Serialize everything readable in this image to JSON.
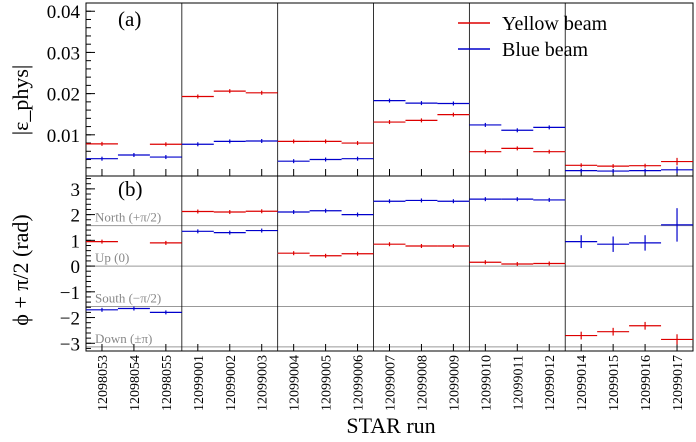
{
  "chart_data": [
    {
      "type": "scatter",
      "panel_label": "(a)",
      "ylabel": "|ε_phys|",
      "ylim": [
        0,
        0.042
      ],
      "yticks": [
        "0.01",
        "0.02",
        "0.03",
        "0.04"
      ],
      "ytick_values": [
        0.01,
        0.02,
        0.03,
        0.04
      ],
      "legend": {
        "position": "top-right",
        "entries": [
          "Yellow beam",
          "Blue beam"
        ]
      },
      "series": [
        {
          "name": "Yellow beam",
          "color": "#dd0000",
          "values": [
            0.0078,
            null,
            0.0077,
            0.0193,
            0.0206,
            0.0202,
            0.0084,
            0.0084,
            0.008,
            0.0131,
            0.0135,
            0.0149,
            0.0059,
            0.0067,
            0.0059,
            0.0026,
            0.0024,
            0.0025,
            0.0035
          ],
          "errors": [
            0.0003,
            null,
            0.0003,
            0.0003,
            0.0003,
            0.0003,
            0.0003,
            0.0003,
            0.0003,
            0.0003,
            0.0003,
            0.0003,
            0.0003,
            0.0003,
            0.0003,
            0.0003,
            0.0003,
            0.0004,
            0.0009
          ]
        },
        {
          "name": "Blue beam",
          "color": "#0000cc",
          "values": [
            0.0042,
            0.0051,
            0.0046,
            0.0077,
            0.0084,
            0.0085,
            0.0036,
            0.004,
            0.0042,
            0.0183,
            0.0177,
            0.0176,
            0.0124,
            0.0111,
            0.0118,
            0.0013,
            0.0012,
            0.0013,
            0.0015
          ],
          "errors": [
            0.0002,
            0.0002,
            0.0002,
            0.0002,
            0.0002,
            0.0002,
            0.0002,
            0.0002,
            0.0002,
            0.0002,
            0.0002,
            0.0002,
            0.0002,
            0.0002,
            0.0002,
            0.0004,
            0.0004,
            0.0004,
            0.0008
          ]
        }
      ]
    },
    {
      "type": "scatter",
      "panel_label": "(b)",
      "ylabel": "ϕ + π/2  (rad)",
      "ylim": [
        -3.3,
        3.5
      ],
      "yticks": [
        "−3",
        "−2",
        "−1",
        "0",
        "1",
        "2",
        "3"
      ],
      "ytick_values": [
        -3,
        -2,
        -1,
        0,
        1,
        2,
        3
      ],
      "reference_lines": [
        {
          "label": "North (+π/2)",
          "value": 1.5708
        },
        {
          "label": "Up (0)",
          "value": 0
        },
        {
          "label": "South (−π/2)",
          "value": -1.5708
        },
        {
          "label": "Down (±π)",
          "value": -3.1416
        }
      ],
      "series": [
        {
          "name": "Yellow beam",
          "color": "#dd0000",
          "values": [
            0.95,
            null,
            0.9,
            2.12,
            2.1,
            2.13,
            0.5,
            0.4,
            0.48,
            0.85,
            0.78,
            0.78,
            0.15,
            0.08,
            0.1,
            -2.7,
            -2.55,
            -2.32,
            -2.85
          ],
          "errors": [
            0.04,
            null,
            0.04,
            0.03,
            0.03,
            0.03,
            0.05,
            0.05,
            0.05,
            0.03,
            0.03,
            0.03,
            0.08,
            0.06,
            0.07,
            0.15,
            0.15,
            0.15,
            0.2
          ]
        },
        {
          "name": "Blue beam",
          "color": "#0000cc",
          "values": [
            -1.7,
            -1.65,
            -1.8,
            1.35,
            1.3,
            1.38,
            2.1,
            2.15,
            2.0,
            2.52,
            2.55,
            2.52,
            2.6,
            2.6,
            2.57,
            0.95,
            0.85,
            0.9,
            1.6
          ],
          "errors": [
            0.04,
            0.04,
            0.05,
            0.03,
            0.03,
            0.03,
            0.06,
            0.06,
            0.08,
            0.02,
            0.02,
            0.02,
            0.02,
            0.02,
            0.02,
            0.25,
            0.3,
            0.3,
            0.65
          ]
        }
      ]
    }
  ],
  "shared_x": {
    "xlabel": "STAR run",
    "categories": [
      "12098053",
      "12098054",
      "12098055",
      "12099001",
      "12099002",
      "12099003",
      "12099004",
      "12099005",
      "12099006",
      "12099007",
      "12099008",
      "12099009",
      "12099010",
      "12099011",
      "12099012",
      "12099014",
      "12099015",
      "12099016",
      "12099017"
    ],
    "group_sizes": [
      3,
      3,
      3,
      3,
      3,
      4
    ]
  }
}
